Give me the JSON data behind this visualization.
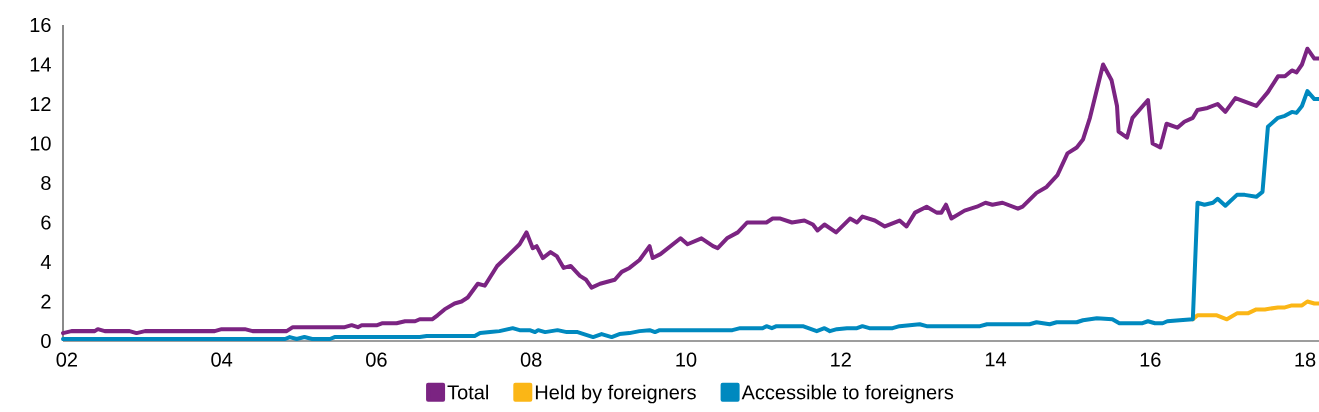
{
  "chart_data": {
    "type": "line",
    "xlim": [
      2001.95,
      2018.18
    ],
    "ylim": [
      0,
      16
    ],
    "xticks": [
      {
        "value": 2002,
        "label": "02"
      },
      {
        "value": 2004,
        "label": "04"
      },
      {
        "value": 2006,
        "label": "06"
      },
      {
        "value": 2008,
        "label": "08"
      },
      {
        "value": 2010,
        "label": "10"
      },
      {
        "value": 2012,
        "label": "12"
      },
      {
        "value": 2014,
        "label": "14"
      },
      {
        "value": 2016,
        "label": "16"
      },
      {
        "value": 2018,
        "label": "18"
      }
    ],
    "yticks": [
      0,
      2,
      4,
      6,
      8,
      10,
      12,
      14,
      16
    ],
    "legend": "bottom",
    "grid": false,
    "marker": "none",
    "line_style": "solid",
    "series": [
      {
        "name": "Total",
        "color": "#7b2482",
        "x": [
          2001.95,
          2002.06,
          2002.36,
          2002.4,
          2002.49,
          2002.81,
          2002.9,
          2003.01,
          2003.91,
          2004.0,
          2004.3,
          2004.4,
          2004.84,
          2004.92,
          2005.59,
          2005.68,
          2005.76,
          2005.81,
          2006.01,
          2006.08,
          2006.26,
          2006.37,
          2006.5,
          2006.56,
          2006.72,
          2006.79,
          2006.88,
          2007.01,
          2007.1,
          2007.18,
          2007.31,
          2007.4,
          2007.56,
          2007.72,
          2007.85,
          2007.94,
          2008.02,
          2008.07,
          2008.15,
          2008.25,
          2008.33,
          2008.42,
          2008.51,
          2008.63,
          2008.71,
          2008.78,
          2008.89,
          2009.08,
          2009.17,
          2009.27,
          2009.4,
          2009.53,
          2009.57,
          2009.67,
          2009.93,
          2010.02,
          2010.2,
          2010.35,
          2010.41,
          2010.53,
          2010.67,
          2010.79,
          2011.04,
          2011.12,
          2011.22,
          2011.37,
          2011.53,
          2011.64,
          2011.7,
          2011.79,
          2011.94,
          2012.12,
          2012.21,
          2012.28,
          2012.44,
          2012.57,
          2012.76,
          2012.85,
          2012.96,
          2013.11,
          2013.24,
          2013.3,
          2013.36,
          2013.43,
          2013.6,
          2013.76,
          2013.87,
          2013.96,
          2014.09,
          2014.29,
          2014.35,
          2014.53,
          2014.66,
          2014.8,
          2014.93,
          2015.05,
          2015.13,
          2015.22,
          2015.39,
          2015.5,
          2015.57,
          2015.59,
          2015.7,
          2015.77,
          2015.97,
          2016.03,
          2016.13,
          2016.21,
          2016.35,
          2016.44,
          2016.55,
          2016.61,
          2016.74,
          2016.87,
          2016.97,
          2017.1,
          2017.37,
          2017.52,
          2017.65,
          2017.74,
          2017.83,
          2017.89,
          2017.96,
          2018.03,
          2018.12,
          2018.18
        ],
        "values": [
          0.4,
          0.5,
          0.5,
          0.6,
          0.5,
          0.5,
          0.4,
          0.5,
          0.5,
          0.6,
          0.6,
          0.5,
          0.5,
          0.7,
          0.7,
          0.8,
          0.7,
          0.8,
          0.8,
          0.9,
          0.9,
          1.0,
          1.0,
          1.1,
          1.1,
          1.3,
          1.6,
          1.9,
          2.0,
          2.2,
          2.9,
          2.8,
          3.8,
          4.4,
          4.9,
          5.5,
          4.7,
          4.8,
          4.2,
          4.5,
          4.3,
          3.7,
          3.8,
          3.3,
          3.1,
          2.7,
          2.9,
          3.1,
          3.5,
          3.7,
          4.1,
          4.8,
          4.2,
          4.4,
          5.2,
          4.9,
          5.2,
          4.8,
          4.7,
          5.2,
          5.5,
          6.0,
          6.0,
          6.2,
          6.2,
          6.0,
          6.1,
          5.9,
          5.6,
          5.9,
          5.5,
          6.2,
          6.0,
          6.3,
          6.1,
          5.8,
          6.1,
          5.8,
          6.5,
          6.8,
          6.5,
          6.5,
          6.9,
          6.2,
          6.6,
          6.8,
          7.0,
          6.9,
          7.0,
          6.7,
          6.8,
          7.5,
          7.8,
          8.4,
          9.5,
          9.8,
          10.2,
          11.3,
          14.0,
          13.2,
          11.9,
          10.6,
          10.3,
          11.3,
          12.2,
          10.0,
          9.8,
          11.0,
          10.8,
          11.1,
          11.3,
          11.7,
          11.8,
          12.0,
          11.6,
          12.3,
          11.9,
          12.6,
          13.4,
          13.4,
          13.7,
          13.6,
          14.0,
          14.8,
          14.3,
          14.3
        ]
      },
      {
        "name": "Held by foreigners",
        "color": "#fbb616",
        "x": [
          2016.55,
          2016.61,
          2016.86,
          2016.99,
          2017.12,
          2017.26,
          2017.37,
          2017.48,
          2017.65,
          2017.74,
          2017.83,
          2017.96,
          2018.03,
          2018.12,
          2018.18
        ],
        "values": [
          1.1,
          1.3,
          1.3,
          1.1,
          1.4,
          1.4,
          1.6,
          1.6,
          1.7,
          1.7,
          1.8,
          1.8,
          2.0,
          1.9,
          1.9
        ]
      },
      {
        "name": "Accessible to foreigners",
        "color": "#0089bf",
        "x": [
          2001.95,
          2004.82,
          2004.88,
          2004.97,
          2005.07,
          2005.17,
          2005.4,
          2005.46,
          2006.56,
          2006.65,
          2007.27,
          2007.34,
          2007.47,
          2007.59,
          2007.76,
          2007.85,
          2007.98,
          2008.05,
          2008.09,
          2008.18,
          2008.34,
          2008.46,
          2008.6,
          2008.8,
          2008.91,
          2009.04,
          2009.14,
          2009.27,
          2009.4,
          2009.53,
          2009.6,
          2009.66,
          2010.6,
          2010.7,
          2010.99,
          2011.04,
          2011.11,
          2011.17,
          2011.51,
          2011.69,
          2011.79,
          2011.86,
          2011.95,
          2012.08,
          2012.21,
          2012.28,
          2012.37,
          2012.67,
          2012.76,
          2013.02,
          2013.11,
          2013.8,
          2013.89,
          2014.44,
          2014.53,
          2014.7,
          2014.79,
          2015.05,
          2015.13,
          2015.31,
          2015.51,
          2015.6,
          2015.9,
          2015.97,
          2016.06,
          2016.16,
          2016.22,
          2016.38,
          2016.55,
          2016.61,
          2016.7,
          2016.81,
          2016.87,
          2016.97,
          2017.12,
          2017.22,
          2017.37,
          2017.45,
          2017.52,
          2017.65,
          2017.74,
          2017.83,
          2017.89,
          2017.96,
          2018.03,
          2018.12,
          2018.18
        ],
        "values": [
          0.1,
          0.1,
          0.2,
          0.1,
          0.2,
          0.1,
          0.1,
          0.2,
          0.2,
          0.25,
          0.25,
          0.4,
          0.45,
          0.5,
          0.65,
          0.55,
          0.55,
          0.45,
          0.55,
          0.45,
          0.55,
          0.45,
          0.45,
          0.2,
          0.35,
          0.2,
          0.35,
          0.4,
          0.5,
          0.55,
          0.45,
          0.55,
          0.55,
          0.65,
          0.65,
          0.75,
          0.65,
          0.75,
          0.75,
          0.5,
          0.65,
          0.5,
          0.6,
          0.65,
          0.65,
          0.75,
          0.65,
          0.65,
          0.75,
          0.85,
          0.75,
          0.75,
          0.85,
          0.85,
          0.95,
          0.85,
          0.95,
          0.95,
          1.05,
          1.15,
          1.1,
          0.9,
          0.9,
          1.0,
          0.9,
          0.9,
          1.0,
          1.05,
          1.1,
          7.0,
          6.9,
          7.0,
          7.2,
          6.85,
          7.4,
          7.4,
          7.3,
          7.55,
          10.85,
          11.3,
          11.4,
          11.6,
          11.55,
          11.9,
          12.65,
          12.25,
          12.25
        ]
      }
    ]
  }
}
